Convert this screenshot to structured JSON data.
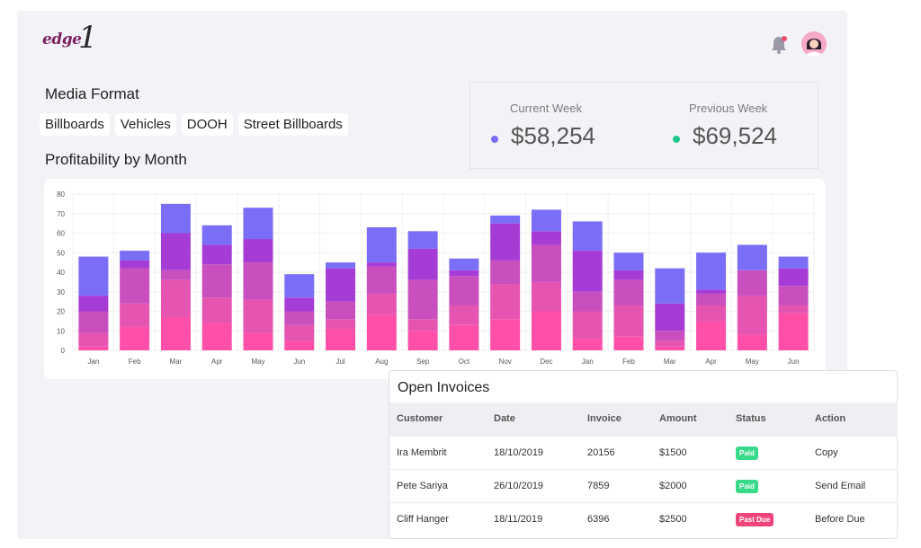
{
  "brand": {
    "logo_text": "edge",
    "logo_number": "1"
  },
  "header": {
    "bell_icon": "bell-icon",
    "notification_color": "#f04a6a",
    "avatar_icon": "user-avatar"
  },
  "media": {
    "title": "Media Format",
    "chips": [
      "Billboards",
      "Vehicles",
      "DOOH",
      "Street Billboards"
    ]
  },
  "weeks": {
    "current_label": "Current Week",
    "current_value": "$58,254",
    "current_color": "#7b6ef6",
    "previous_label": "Previous Week",
    "previous_value": "$69,524",
    "previous_color": "#1fc98e"
  },
  "profit": {
    "title": "Profitability by Month"
  },
  "chart_data": {
    "type": "bar",
    "stacked": true,
    "ylim": [
      0,
      80
    ],
    "yticks": [
      0,
      10,
      20,
      30,
      40,
      50,
      60,
      70,
      80
    ],
    "grid": true,
    "categories": [
      "Jan",
      "Feb",
      "Mar",
      "Apr",
      "May",
      "Jun",
      "Jul",
      "Aug",
      "Sep",
      "Oct",
      "Nov",
      "Dec",
      "Jan",
      "Feb",
      "Mar",
      "Apr",
      "May",
      "Jun"
    ],
    "colors": [
      "#ff4fa8",
      "#e654b2",
      "#c94fbf",
      "#a63cd6",
      "#7b6ef6"
    ],
    "series": [
      {
        "values": [
          2,
          12,
          17,
          14,
          9,
          5,
          11,
          18,
          10,
          13,
          16,
          20,
          6,
          7,
          2,
          15,
          8,
          19
        ]
      },
      {
        "values": [
          7,
          12,
          19,
          13,
          17,
          8,
          5,
          11,
          6,
          10,
          18,
          15,
          14,
          16,
          3,
          8,
          20,
          4
        ]
      },
      {
        "values": [
          11,
          18,
          5,
          17,
          19,
          7,
          9,
          14,
          20,
          15,
          12,
          19,
          10,
          13,
          5,
          6,
          13,
          10
        ]
      },
      {
        "values": [
          8,
          4,
          19,
          10,
          12,
          7,
          17,
          2,
          16,
          3,
          19,
          7,
          21,
          5,
          14,
          2,
          0,
          9
        ]
      },
      {
        "values": [
          20,
          5,
          15,
          10,
          16,
          12,
          3,
          18,
          9,
          6,
          4,
          11,
          15,
          9,
          18,
          19,
          13,
          6
        ]
      }
    ]
  },
  "invoices": {
    "title": "Open Invoices",
    "columns": [
      "Customer",
      "Date",
      "Invoice",
      "Amount",
      "Status",
      "Action"
    ],
    "rows": [
      {
        "customer": "Ira Membrit",
        "date": "18/10/2019",
        "invoice": "20156",
        "amount": "$1500",
        "status": "Paid",
        "status_color": "#39d98a",
        "action": "Copy"
      },
      {
        "customer": "Pete Sariya",
        "date": "26/10/2019",
        "invoice": "7859",
        "amount": "$2000",
        "status": "Paid",
        "status_color": "#39d98a",
        "action": "Send Email"
      },
      {
        "customer": "Cliff Hanger",
        "date": "18/11/2019",
        "invoice": "6396",
        "amount": "$2500",
        "status": "Past Due",
        "status_color": "#f0457b",
        "action": "Before Due"
      }
    ]
  }
}
